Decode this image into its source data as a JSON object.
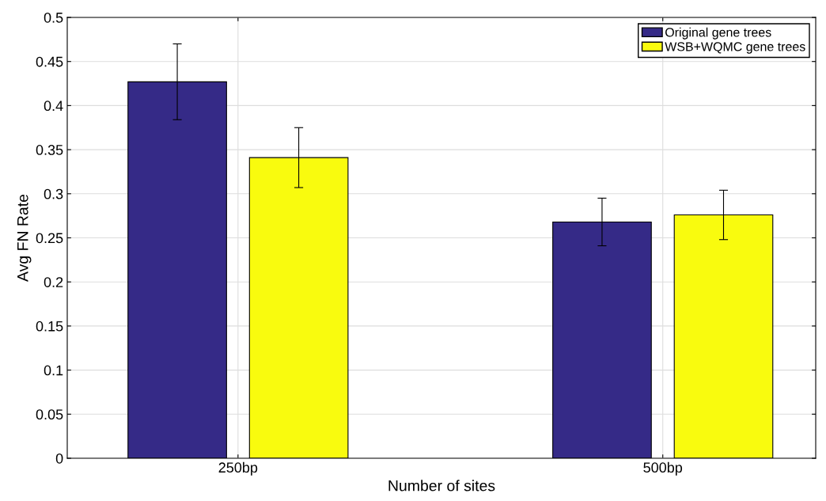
{
  "chart_data": {
    "type": "bar",
    "xlabel": "Number of sites",
    "ylabel": "Avg FN Rate",
    "categories": [
      "250bp",
      "500bp"
    ],
    "series": [
      {
        "name": "Original gene trees",
        "color": "#352a87",
        "values": [
          0.427,
          0.268
        ],
        "errors": [
          0.043,
          0.027
        ]
      },
      {
        "name": "WSB+WQMC gene trees",
        "color": "#f9fb0e",
        "values": [
          0.341,
          0.276
        ],
        "errors": [
          0.034,
          0.028
        ]
      }
    ],
    "ylim": [
      0,
      0.5
    ],
    "yticks": [
      0,
      0.05,
      0.1,
      0.15,
      0.2,
      0.25,
      0.3,
      0.35,
      0.4,
      0.45,
      0.5
    ],
    "grid": true,
    "legend": "top right"
  }
}
